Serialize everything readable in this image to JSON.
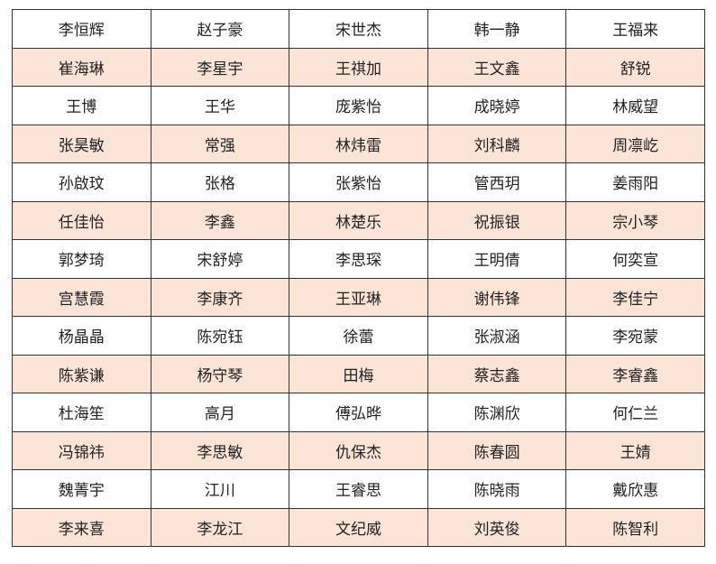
{
  "colors": {
    "row_highlight": "#fce4d6",
    "border": "#333333"
  },
  "table": {
    "rows": [
      [
        "李恒辉",
        "赵子豪",
        "宋世杰",
        "韩一静",
        "王福来"
      ],
      [
        "崔海琳",
        "李星宇",
        "王祺加",
        "王文鑫",
        "舒锐"
      ],
      [
        "王博",
        "王华",
        "庞紫怡",
        "成晓婷",
        "林威望"
      ],
      [
        "张昊敏",
        "常强",
        "林炜雷",
        "刘科麟",
        "周凛屹"
      ],
      [
        "孙啟玟",
        "张格",
        "张紫怡",
        "管西玥",
        "姜雨阳"
      ],
      [
        "任佳怡",
        "李鑫",
        "林楚乐",
        "祝振银",
        "宗小琴"
      ],
      [
        "郭梦琦",
        "宋舒婷",
        "李思琛",
        "王明倩",
        "何奕宣"
      ],
      [
        "宫慧霞",
        "李康齐",
        "王亚琳",
        "谢伟锋",
        "李佳宁"
      ],
      [
        "杨晶晶",
        "陈宛钰",
        "徐蕾",
        "张淑涵",
        "李宛蒙"
      ],
      [
        "陈紫谦",
        "杨守琴",
        "田梅",
        "蔡志鑫",
        "李睿鑫"
      ],
      [
        "杜海笙",
        "高月",
        "傅弘晔",
        "陈渊欣",
        "何仁兰"
      ],
      [
        "冯锦祎",
        "李思敏",
        "仇保杰",
        "陈春圆",
        "王婧"
      ],
      [
        "魏菁宇",
        "江川",
        "王睿思",
        "陈晓雨",
        "戴欣惠"
      ],
      [
        "李来喜",
        "李龙江",
        "文纪威",
        "刘英俊",
        "陈智利"
      ]
    ]
  }
}
